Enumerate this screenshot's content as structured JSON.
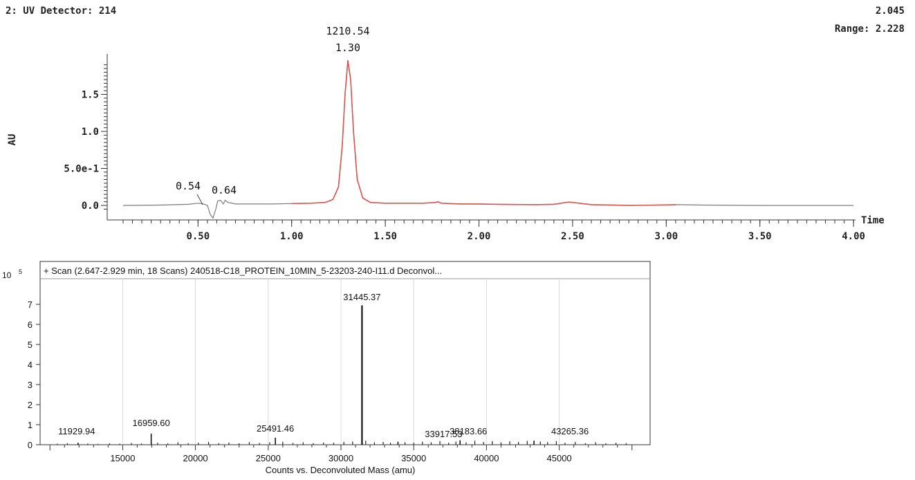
{
  "chart_data": [
    {
      "type": "line",
      "header_left": "2: UV Detector: 214",
      "header_right_value": "2.045",
      "header_right_range": "Range: 2.228",
      "ylabel": "AU",
      "xlabel": "Time",
      "xlim": [
        0.1,
        4.0
      ],
      "ylim": [
        -0.08,
        1.95
      ],
      "x_ticks": [
        {
          "value": 0.5,
          "label": "0.50"
        },
        {
          "value": 1.0,
          "label": "1.00"
        },
        {
          "value": 1.5,
          "label": "1.50"
        },
        {
          "value": 2.0,
          "label": "2.00"
        },
        {
          "value": 2.5,
          "label": "2.50"
        },
        {
          "value": 3.0,
          "label": "3.00"
        },
        {
          "value": 3.5,
          "label": "3.50"
        },
        {
          "value": 4.0,
          "label": "4.00"
        }
      ],
      "y_ticks": [
        {
          "value": 0.0,
          "label": "0.0"
        },
        {
          "value": 0.5,
          "label": "5.0e-1"
        },
        {
          "value": 1.0,
          "label": "1.0"
        },
        {
          "value": 1.5,
          "label": "1.5"
        }
      ],
      "series": [
        {
          "color": "#7a7a7a",
          "highlight_color": "#d9534f",
          "highlight_range": [
            0.95,
            3.05
          ],
          "points": [
            [
              0.1,
              0.0
            ],
            [
              0.3,
              0.005
            ],
            [
              0.45,
              0.015
            ],
            [
              0.5,
              0.03
            ],
            [
              0.53,
              0.02
            ],
            [
              0.55,
              0.0
            ],
            [
              0.565,
              -0.12
            ],
            [
              0.58,
              -0.17
            ],
            [
              0.595,
              -0.05
            ],
            [
              0.605,
              0.06
            ],
            [
              0.62,
              0.07
            ],
            [
              0.635,
              0.02
            ],
            [
              0.645,
              0.07
            ],
            [
              0.66,
              0.04
            ],
            [
              0.7,
              0.02
            ],
            [
              0.8,
              0.02
            ],
            [
              0.9,
              0.02
            ],
            [
              1.0,
              0.025
            ],
            [
              1.1,
              0.03
            ],
            [
              1.18,
              0.04
            ],
            [
              1.22,
              0.08
            ],
            [
              1.25,
              0.25
            ],
            [
              1.27,
              0.8
            ],
            [
              1.285,
              1.5
            ],
            [
              1.3,
              1.96
            ],
            [
              1.315,
              1.7
            ],
            [
              1.33,
              1.0
            ],
            [
              1.35,
              0.35
            ],
            [
              1.38,
              0.1
            ],
            [
              1.42,
              0.04
            ],
            [
              1.5,
              0.03
            ],
            [
              1.6,
              0.03
            ],
            [
              1.7,
              0.03
            ],
            [
              1.77,
              0.04
            ],
            [
              1.78,
              0.05
            ],
            [
              1.8,
              0.03
            ],
            [
              1.9,
              0.02
            ],
            [
              2.0,
              0.02
            ],
            [
              2.1,
              0.015
            ],
            [
              2.2,
              0.012
            ],
            [
              2.3,
              0.01
            ],
            [
              2.4,
              0.015
            ],
            [
              2.45,
              0.035
            ],
            [
              2.48,
              0.045
            ],
            [
              2.52,
              0.035
            ],
            [
              2.6,
              0.01
            ],
            [
              2.8,
              0.0
            ],
            [
              2.95,
              0.005
            ],
            [
              3.05,
              0.01
            ],
            [
              3.2,
              0.005
            ],
            [
              3.5,
              0.0
            ],
            [
              4.0,
              0.0
            ]
          ]
        }
      ],
      "annotations": [
        {
          "x": 1.3,
          "y": 1.96,
          "lines": [
            "1210.54",
            "1.30"
          ]
        },
        {
          "x": 0.54,
          "y": 0.1,
          "lines": [
            "0.54"
          ]
        },
        {
          "x": 0.64,
          "y": 0.09,
          "lines": [
            "0.64"
          ]
        }
      ]
    },
    {
      "type": "bar",
      "title": "+ Scan (2.647-2.929 min, 18 Scans) 240518-C18_PROTEIN_10MIN_5-23203-240-I11.d  Deconvol...",
      "exponent_base": "10",
      "exponent_power": "5",
      "xlabel": "Counts vs. Deconvoluted Mass (amu)",
      "xlim": [
        9800,
        50200
      ],
      "ylim": [
        0,
        7.9
      ],
      "x_ticks": [
        {
          "value": 15000,
          "label": "15000"
        },
        {
          "value": 20000,
          "label": "20000"
        },
        {
          "value": 25000,
          "label": "25000"
        },
        {
          "value": 30000,
          "label": "30000"
        },
        {
          "value": 35000,
          "label": "35000"
        },
        {
          "value": 40000,
          "label": "40000"
        },
        {
          "value": 45000,
          "label": "45000"
        }
      ],
      "y_ticks": [
        {
          "value": 0,
          "label": "0"
        },
        {
          "value": 1,
          "label": "1"
        },
        {
          "value": 2,
          "label": "2"
        },
        {
          "value": 3,
          "label": "3"
        },
        {
          "value": 4,
          "label": "4"
        },
        {
          "value": 5,
          "label": "5"
        },
        {
          "value": 6,
          "label": "6"
        },
        {
          "value": 7,
          "label": "7"
        }
      ],
      "peaks": [
        {
          "x": 11929.94,
          "y": 0.1,
          "label": "11929.94"
        },
        {
          "x": 16959.6,
          "y": 0.55,
          "label": "16959.60"
        },
        {
          "x": 25491.46,
          "y": 0.35,
          "label": "25491.46"
        },
        {
          "x": 31445.37,
          "y": 6.95,
          "label": "31445.37"
        },
        {
          "x": 33917.53,
          "y": 0.15,
          "label": "33917.53"
        },
        {
          "x": 38183.66,
          "y": 0.22,
          "label": "38183.66"
        },
        {
          "x": 43265.36,
          "y": 0.2,
          "label": "43265.36"
        }
      ],
      "noise": [
        [
          10500,
          0.05
        ],
        [
          11200,
          0.08
        ],
        [
          12600,
          0.06
        ],
        [
          13300,
          0.04
        ],
        [
          14100,
          0.07
        ],
        [
          14800,
          0.05
        ],
        [
          15600,
          0.09
        ],
        [
          16300,
          0.06
        ],
        [
          17400,
          0.1
        ],
        [
          18100,
          0.07
        ],
        [
          18800,
          0.12
        ],
        [
          19500,
          0.08
        ],
        [
          20200,
          0.1
        ],
        [
          20900,
          0.14
        ],
        [
          21600,
          0.08
        ],
        [
          22300,
          0.11
        ],
        [
          23000,
          0.07
        ],
        [
          23700,
          0.13
        ],
        [
          24400,
          0.09
        ],
        [
          25100,
          0.12
        ],
        [
          26000,
          0.15
        ],
        [
          26700,
          0.09
        ],
        [
          27400,
          0.12
        ],
        [
          28100,
          0.08
        ],
        [
          28800,
          0.11
        ],
        [
          29500,
          0.1
        ],
        [
          30200,
          0.14
        ],
        [
          30800,
          0.16
        ],
        [
          31700,
          0.2
        ],
        [
          32300,
          0.12
        ],
        [
          32900,
          0.14
        ],
        [
          33400,
          0.1
        ],
        [
          34400,
          0.13
        ],
        [
          35000,
          0.1
        ],
        [
          35600,
          0.15
        ],
        [
          36200,
          0.12
        ],
        [
          36800,
          0.18
        ],
        [
          37400,
          0.1
        ],
        [
          37900,
          0.16
        ],
        [
          38600,
          0.12
        ],
        [
          39200,
          0.2
        ],
        [
          39800,
          0.14
        ],
        [
          40400,
          0.18
        ],
        [
          41000,
          0.12
        ],
        [
          41600,
          0.17
        ],
        [
          42200,
          0.14
        ],
        [
          42800,
          0.19
        ],
        [
          43700,
          0.16
        ],
        [
          44200,
          0.13
        ],
        [
          44800,
          0.18
        ],
        [
          45400,
          0.1
        ],
        [
          46100,
          0.14
        ],
        [
          46800,
          0.08
        ],
        [
          47500,
          0.12
        ],
        [
          48200,
          0.07
        ],
        [
          48900,
          0.1
        ],
        [
          49600,
          0.08
        ]
      ]
    }
  ]
}
